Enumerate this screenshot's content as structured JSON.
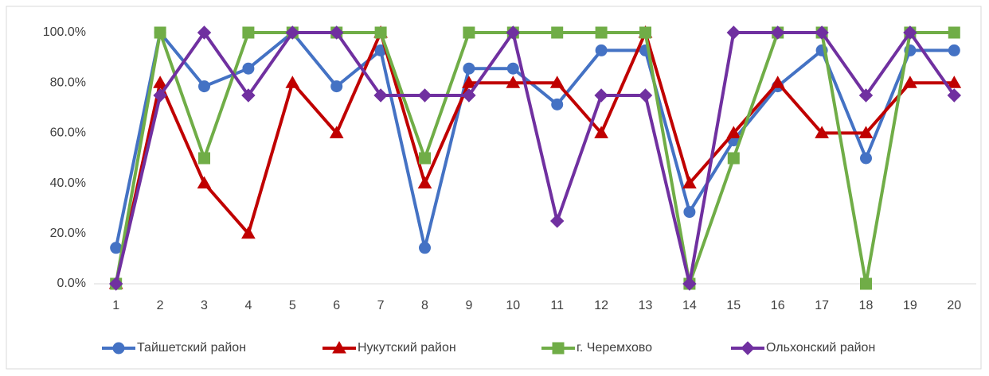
{
  "chart_data": {
    "type": "line",
    "categories": [
      "1",
      "2",
      "3",
      "4",
      "5",
      "6",
      "7",
      "8",
      "9",
      "10",
      "11",
      "12",
      "13",
      "14",
      "15",
      "16",
      "17",
      "18",
      "19",
      "20"
    ],
    "ylim": [
      0,
      100
    ],
    "yticks": [
      {
        "value": 0,
        "label": "0.0%"
      },
      {
        "value": 20,
        "label": "20.0%"
      },
      {
        "value": 40,
        "label": "40.0%"
      },
      {
        "value": 60,
        "label": "60.0%"
      },
      {
        "value": 80,
        "label": "80.0%"
      },
      {
        "value": 100,
        "label": "100.0%"
      }
    ],
    "grid": false,
    "legend": "bottom",
    "series": [
      {
        "name": "Тайшетский район",
        "color": "#4472c4",
        "marker": "circle",
        "values": [
          14.3,
          100,
          78.6,
          85.7,
          100,
          78.6,
          92.9,
          14.3,
          85.7,
          85.7,
          71.4,
          92.9,
          92.9,
          28.6,
          57.1,
          78.6,
          92.9,
          50,
          92.9,
          92.9
        ]
      },
      {
        "name": "Нукутский район",
        "color": "#c00000",
        "marker": "triangle",
        "values": [
          0,
          80,
          40,
          20,
          80,
          60,
          100,
          40,
          80,
          80,
          80,
          60,
          100,
          40,
          60,
          80,
          60,
          60,
          80,
          80
        ]
      },
      {
        "name": "г. Черемхово",
        "color": "#70ad47",
        "marker": "square",
        "values": [
          0,
          100,
          50,
          100,
          100,
          100,
          100,
          50,
          100,
          100,
          100,
          100,
          100,
          0,
          50,
          100,
          100,
          0,
          100,
          100
        ]
      },
      {
        "name": "Ольхонский район",
        "color": "#7030a0",
        "marker": "diamond",
        "values": [
          0,
          75,
          100,
          75,
          100,
          100,
          75,
          75,
          75,
          100,
          25,
          75,
          75,
          0,
          100,
          100,
          100,
          75,
          100,
          75
        ]
      }
    ]
  }
}
